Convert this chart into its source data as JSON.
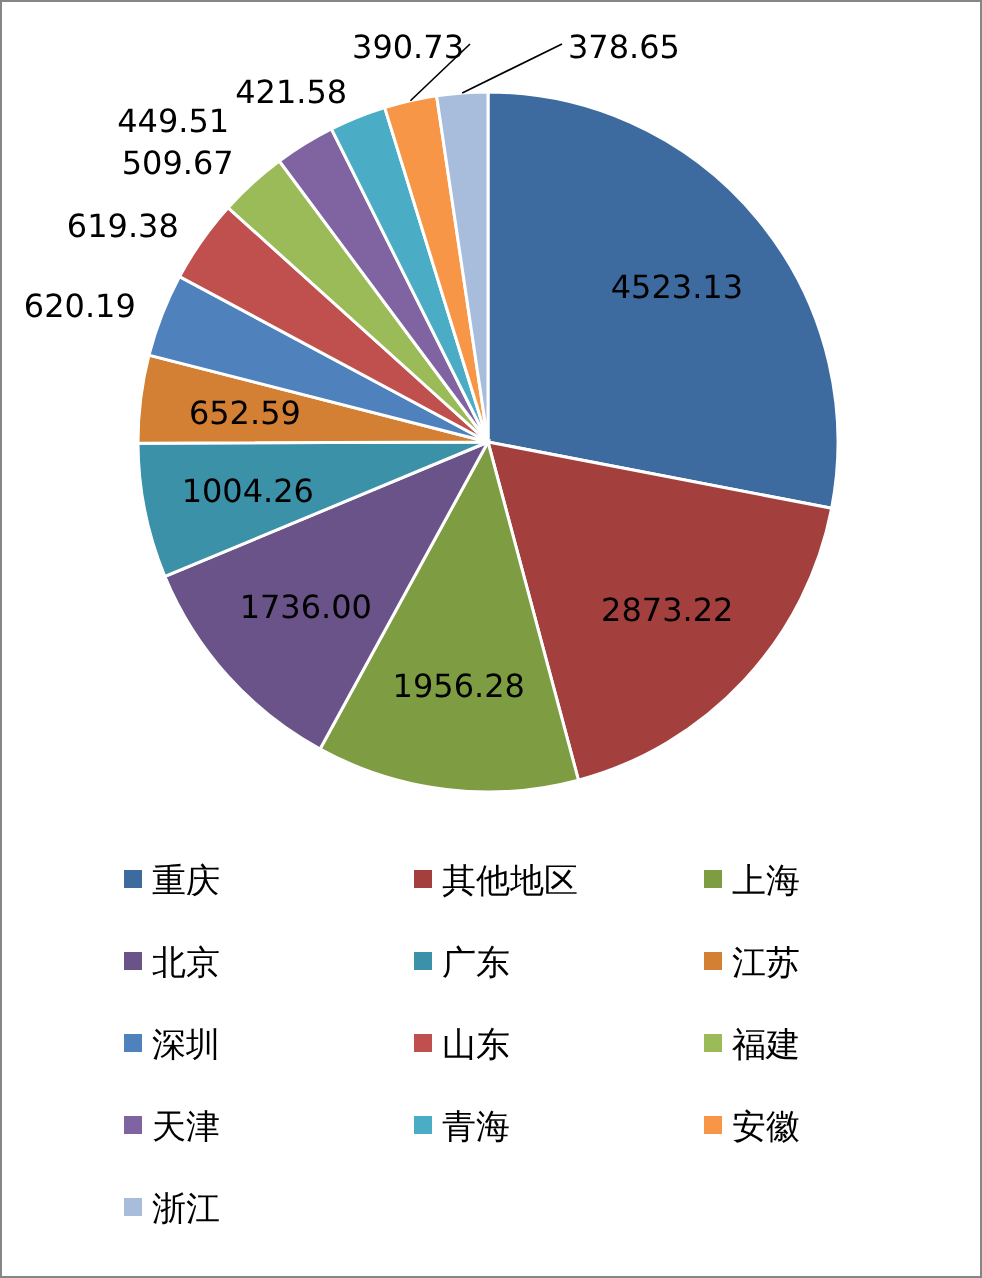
{
  "chart_data": {
    "type": "pie",
    "categories": [
      "重庆",
      "其他地区",
      "上海",
      "北京",
      "广东",
      "江苏",
      "深圳",
      "山东",
      "福建",
      "天津",
      "青海",
      "安徽",
      "浙江"
    ],
    "values": [
      4523.13,
      2873.22,
      1956.28,
      1736.0,
      1004.26,
      652.59,
      620.19,
      619.38,
      509.67,
      449.51,
      421.58,
      390.73,
      378.65
    ],
    "value_labels": [
      "4523.13",
      "2873.22",
      "1956.28",
      "1736.00",
      "1004.26",
      "652.59",
      "620.19",
      "619.38",
      "509.67",
      "449.51",
      "421.58",
      "390.73",
      "378.65"
    ],
    "colors": [
      "#3d6a9f",
      "#a3403d",
      "#7e9d42",
      "#6a5389",
      "#3a91a8",
      "#d37f34",
      "#4f81bd",
      "#c0504d",
      "#9bbb59",
      "#8064a2",
      "#4bacc6",
      "#f79646",
      "#a8bcdc"
    ],
    "legend": "bottom"
  }
}
